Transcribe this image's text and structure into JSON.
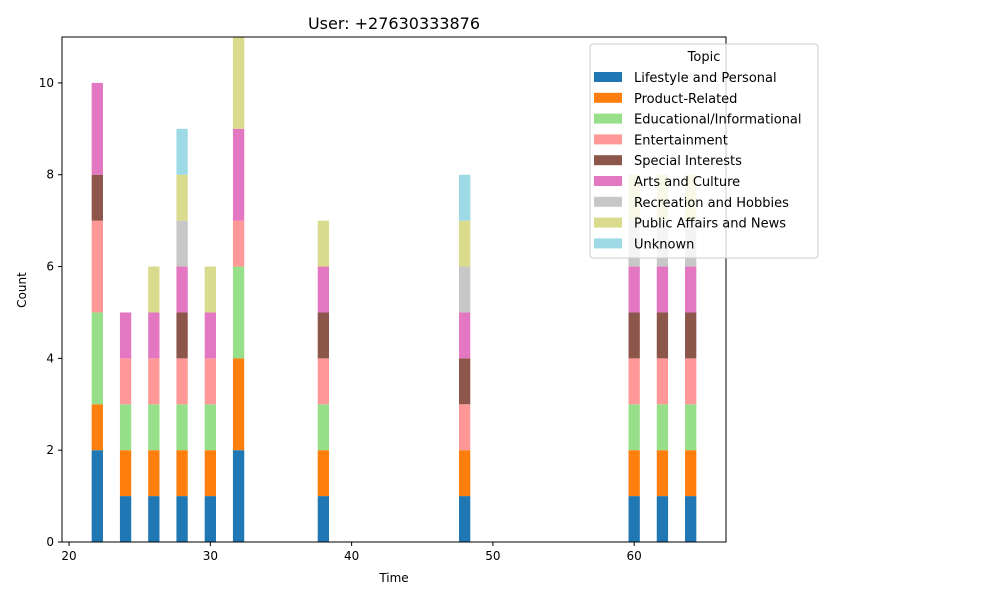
{
  "chart_data": {
    "type": "bar",
    "stacked": true,
    "title": "User: +27630333876",
    "xlabel": "Time",
    "ylabel": "Count",
    "xlim": [
      19.5,
      66.5
    ],
    "ylim": [
      0,
      11
    ],
    "x_ticks": [
      20,
      30,
      40,
      50,
      60
    ],
    "y_ticks": [
      0,
      2,
      4,
      6,
      8,
      10
    ],
    "x": [
      22,
      24,
      26,
      28,
      30,
      32,
      38,
      48,
      60,
      62,
      64
    ],
    "bar_width": 0.8,
    "grid": false,
    "legend": {
      "title": "Topic",
      "placement": "upper-right"
    },
    "series": [
      {
        "name": "Lifestyle and Personal",
        "color": "#1f77b4",
        "values": [
          2,
          1,
          1,
          1,
          1,
          2,
          1,
          1,
          1,
          1,
          1
        ]
      },
      {
        "name": "Product-Related",
        "color": "#ff7f0e",
        "values": [
          1,
          1,
          1,
          1,
          1,
          2,
          1,
          1,
          1,
          1,
          1
        ]
      },
      {
        "name": "Educational/Informational",
        "color": "#98df8a",
        "values": [
          2,
          1,
          1,
          1,
          1,
          2,
          1,
          0,
          1,
          1,
          1
        ]
      },
      {
        "name": "Entertainment",
        "color": "#ff9896",
        "values": [
          2,
          1,
          1,
          1,
          1,
          1,
          1,
          1,
          1,
          1,
          1
        ]
      },
      {
        "name": "Special Interests",
        "color": "#8c564b",
        "values": [
          1,
          0,
          0,
          1,
          0,
          0,
          1,
          1,
          1,
          1,
          1
        ]
      },
      {
        "name": "Arts and Culture",
        "color": "#e377c2",
        "values": [
          2,
          1,
          1,
          1,
          1,
          2,
          1,
          1,
          1,
          1,
          1
        ]
      },
      {
        "name": "Recreation and Hobbies",
        "color": "#c7c7c7",
        "values": [
          0,
          0,
          0,
          1,
          0,
          0,
          0,
          1,
          1,
          1,
          1
        ]
      },
      {
        "name": "Public Affairs and News",
        "color": "#dbdb8d",
        "values": [
          0,
          0,
          1,
          1,
          1,
          2,
          1,
          1,
          1,
          1,
          1
        ]
      },
      {
        "name": "Unknown",
        "color": "#9edae5",
        "values": [
          0,
          0,
          0,
          1,
          0,
          0,
          0,
          1,
          0,
          0,
          0
        ]
      }
    ]
  }
}
